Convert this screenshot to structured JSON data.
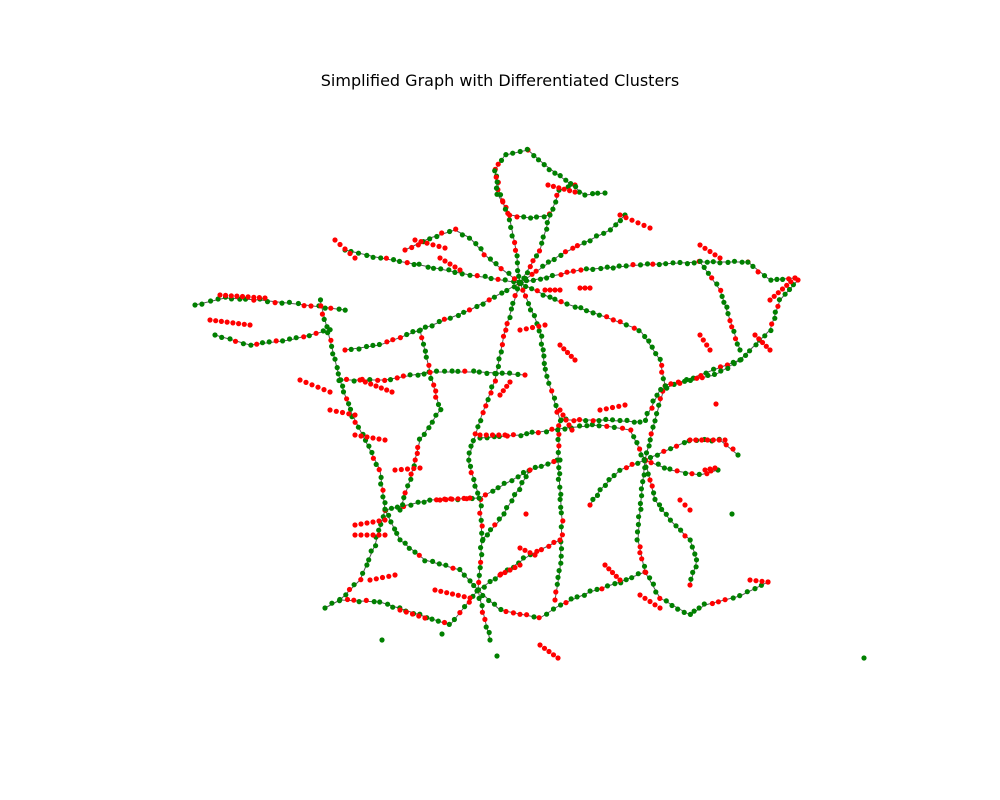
{
  "title": "Simplified Graph with Differentiated Clusters",
  "colors": {
    "background": "#ffffff",
    "edge": "#555555",
    "cluster_a": "#008000",
    "cluster_b": "#ff0000"
  },
  "graph": {
    "node_type": "point",
    "cluster_colors": [
      "#008000",
      "#ff0000"
    ],
    "clusters": [
      "green",
      "red"
    ]
  }
}
